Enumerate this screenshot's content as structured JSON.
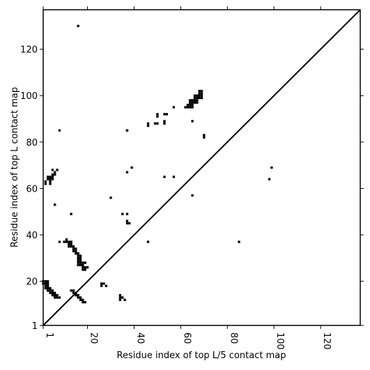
{
  "chart_data": {
    "type": "heatmap",
    "title": "",
    "xlabel": "Residue index of top L/5 contact map",
    "ylabel": "Residue index of top L contact map",
    "xlim": [
      1,
      137
    ],
    "ylim": [
      1,
      137
    ],
    "x_ticks": [
      1,
      20,
      40,
      60,
      80,
      100,
      120
    ],
    "y_ticks": [
      1,
      20,
      40,
      60,
      80,
      100,
      120
    ],
    "x_tick_labels": [
      "1",
      "20",
      "40",
      "60",
      "80",
      "100",
      "120"
    ],
    "y_tick_labels": [
      "1",
      "20",
      "40",
      "60",
      "80",
      "100",
      "120"
    ],
    "diagonal": true,
    "cell_color": "#000000",
    "background_color": "#ffffff",
    "upper_contacts": [
      [
        37,
        85
      ],
      [
        99,
        69
      ],
      [
        98,
        64
      ],
      [
        85,
        37
      ]
    ],
    "lower_contacts": [
      [
        1,
        20
      ],
      [
        2,
        20
      ],
      [
        3,
        20
      ],
      [
        1,
        19
      ],
      [
        2,
        19
      ],
      [
        3,
        19
      ],
      [
        2,
        18
      ],
      [
        3,
        18
      ],
      [
        2,
        17
      ],
      [
        3,
        17
      ],
      [
        4,
        17
      ],
      [
        3,
        16
      ],
      [
        4,
        16
      ],
      [
        5,
        16
      ],
      [
        4,
        15
      ],
      [
        5,
        15
      ],
      [
        6,
        15
      ],
      [
        5,
        14
      ],
      [
        6,
        14
      ],
      [
        7,
        14
      ],
      [
        6,
        13
      ],
      [
        7,
        13
      ],
      [
        8,
        13
      ],
      [
        13,
        16
      ],
      [
        14,
        16
      ],
      [
        14,
        15
      ],
      [
        15,
        15
      ],
      [
        15,
        14
      ],
      [
        16,
        14
      ],
      [
        16,
        13
      ],
      [
        17,
        13
      ],
      [
        17,
        12
      ],
      [
        18,
        12
      ],
      [
        18,
        11
      ],
      [
        19,
        11
      ],
      [
        11,
        38
      ],
      [
        10,
        37
      ],
      [
        11,
        37
      ],
      [
        12,
        37
      ],
      [
        13,
        37
      ],
      [
        12,
        36
      ],
      [
        13,
        36
      ],
      [
        12,
        35
      ],
      [
        13,
        35
      ],
      [
        14,
        35
      ],
      [
        14,
        34
      ],
      [
        15,
        34
      ],
      [
        14,
        33
      ],
      [
        15,
        33
      ],
      [
        15,
        32
      ],
      [
        16,
        32
      ],
      [
        16,
        31
      ],
      [
        17,
        31
      ],
      [
        16,
        30
      ],
      [
        17,
        30
      ],
      [
        16,
        29
      ],
      [
        17,
        29
      ],
      [
        16,
        28
      ],
      [
        17,
        28
      ],
      [
        18,
        28
      ],
      [
        19,
        28
      ],
      [
        16,
        27
      ],
      [
        17,
        27
      ],
      [
        18,
        27
      ],
      [
        18,
        26
      ],
      [
        19,
        26
      ],
      [
        20,
        26
      ],
      [
        18,
        25
      ],
      [
        19,
        25
      ],
      [
        2,
        63
      ],
      [
        2,
        62
      ],
      [
        3,
        65
      ],
      [
        4,
        65
      ],
      [
        5,
        65
      ],
      [
        3,
        64
      ],
      [
        4,
        64
      ],
      [
        5,
        64
      ],
      [
        4,
        63
      ],
      [
        4,
        62
      ],
      [
        5,
        66
      ],
      [
        6,
        66
      ],
      [
        6,
        67
      ],
      [
        7,
        68
      ],
      [
        5,
        68
      ],
      [
        26,
        19
      ],
      [
        27,
        19
      ],
      [
        26,
        18
      ],
      [
        28,
        18
      ],
      [
        34,
        14
      ],
      [
        34,
        13
      ],
      [
        35,
        13
      ],
      [
        34,
        12
      ],
      [
        36,
        12
      ],
      [
        35,
        49
      ],
      [
        37,
        49
      ],
      [
        37,
        46
      ],
      [
        37,
        45
      ],
      [
        38,
        45
      ],
      [
        37,
        67
      ],
      [
        39,
        69
      ],
      [
        30,
        56
      ],
      [
        6,
        53
      ],
      [
        13,
        49
      ],
      [
        8,
        37
      ],
      [
        8,
        85
      ],
      [
        16,
        130
      ],
      [
        37,
        85
      ],
      [
        46,
        37
      ],
      [
        46,
        88
      ],
      [
        46,
        87
      ],
      [
        49,
        88
      ],
      [
        50,
        88
      ],
      [
        50,
        92
      ],
      [
        50,
        91
      ],
      [
        53,
        92
      ],
      [
        54,
        92
      ],
      [
        53,
        89
      ],
      [
        53,
        88
      ],
      [
        53,
        65
      ],
      [
        57,
        95
      ],
      [
        57,
        65
      ],
      [
        65,
        57
      ],
      [
        65,
        89
      ],
      [
        70,
        83
      ],
      [
        70,
        82
      ],
      [
        62,
        95
      ],
      [
        63,
        95
      ],
      [
        64,
        95
      ],
      [
        65,
        95
      ],
      [
        63,
        96
      ],
      [
        64,
        96
      ],
      [
        65,
        96
      ],
      [
        64,
        97
      ],
      [
        65,
        97
      ],
      [
        64,
        98
      ],
      [
        65,
        98
      ],
      [
        66,
        97
      ],
      [
        67,
        97
      ],
      [
        66,
        98
      ],
      [
        67,
        98
      ],
      [
        66,
        99
      ],
      [
        67,
        99
      ],
      [
        68,
        99
      ],
      [
        69,
        99
      ],
      [
        66,
        100
      ],
      [
        67,
        100
      ],
      [
        68,
        100
      ],
      [
        69,
        100
      ],
      [
        68,
        101
      ],
      [
        69,
        101
      ],
      [
        68,
        102
      ],
      [
        69,
        102
      ]
    ]
  }
}
